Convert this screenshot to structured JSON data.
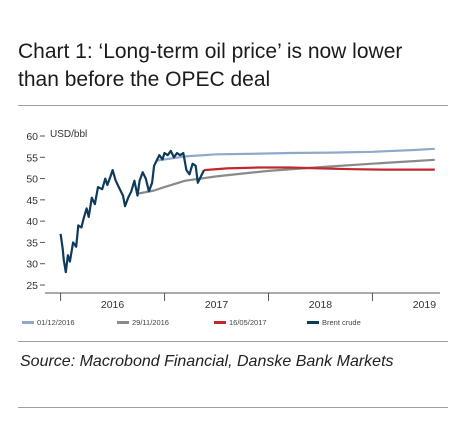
{
  "title": "Chart 1: ‘Long-term oil price’ is now lower than before the OPEC deal",
  "source": "Source: Macrobond Financial, Danske Bank Markets",
  "colors": {
    "series_0112": "#8fa9cc",
    "series_2911": "#8a8a8a",
    "series_1605": "#c0282d",
    "brent": "#0e3a5c"
  },
  "chart_data": {
    "type": "line",
    "ylabel": "USD/bbl",
    "ylim": [
      25,
      60
    ],
    "yticks": [
      "60",
      "55",
      "50",
      "45",
      "40",
      "35",
      "30",
      "25"
    ],
    "ytick_values": [
      60,
      55,
      50,
      45,
      40,
      35,
      30,
      25
    ],
    "xlim": [
      2015.85,
      2019.65
    ],
    "xticks": [
      "2016",
      "2017",
      "2018",
      "2019"
    ],
    "xtick_positions": [
      2016.5,
      2017.5,
      2018.5,
      2019.5
    ],
    "xgridlines": [
      2016,
      2017,
      2018,
      2019
    ],
    "legend_position": "bottom",
    "series": [
      {
        "name": "01/12/2016",
        "x": [
          2016.92,
          2017.2,
          2017.5,
          2017.8,
          2018.2,
          2018.6,
          2019.0,
          2019.4,
          2019.6
        ],
        "y": [
          54.2,
          55.2,
          55.7,
          55.8,
          56.0,
          56.1,
          56.3,
          56.7,
          57.0
        ]
      },
      {
        "name": "29/11/2016",
        "x": [
          2016.75,
          2016.9,
          2017.0,
          2017.2,
          2017.5,
          2017.8,
          2018.0,
          2018.5,
          2019.0,
          2019.4,
          2019.6
        ],
        "y": [
          46.5,
          47.2,
          48.0,
          49.5,
          50.5,
          51.3,
          51.8,
          52.7,
          53.5,
          54.1,
          54.4
        ]
      },
      {
        "name": "16/05/2017",
        "x": [
          2017.38,
          2017.6,
          2017.9,
          2018.2,
          2018.5,
          2018.8,
          2019.1,
          2019.4,
          2019.6
        ],
        "y": [
          52.0,
          52.4,
          52.6,
          52.6,
          52.4,
          52.2,
          52.1,
          52.1,
          52.1
        ]
      },
      {
        "name": "Brent crude",
        "x": [
          2016.0,
          2016.02,
          2016.03,
          2016.05,
          2016.07,
          2016.09,
          2016.12,
          2016.15,
          2016.17,
          2016.2,
          2016.22,
          2016.25,
          2016.27,
          2016.3,
          2016.33,
          2016.36,
          2016.4,
          2016.43,
          2016.45,
          2016.48,
          2016.5,
          2016.53,
          2016.56,
          2016.6,
          2016.62,
          2016.65,
          2016.68,
          2016.71,
          2016.74,
          2016.76,
          2016.79,
          2016.82,
          2016.85,
          2016.88,
          2016.9,
          2016.92,
          2016.95,
          2016.98,
          2017.0,
          2017.03,
          2017.06,
          2017.09,
          2017.12,
          2017.15,
          2017.18,
          2017.21,
          2017.24,
          2017.27,
          2017.3,
          2017.32,
          2017.35,
          2017.38
        ],
        "y": [
          37.0,
          33.5,
          31.0,
          28.0,
          32.0,
          30.5,
          35.0,
          34.0,
          39.0,
          38.5,
          40.5,
          43.0,
          41.0,
          45.5,
          44.0,
          48.0,
          47.5,
          50.0,
          48.5,
          50.5,
          52.0,
          49.5,
          48.0,
          46.0,
          43.5,
          45.5,
          47.0,
          49.5,
          46.0,
          49.5,
          51.5,
          50.0,
          47.0,
          49.0,
          53.0,
          54.0,
          55.5,
          54.5,
          56.0,
          55.5,
          56.5,
          55.0,
          56.0,
          55.5,
          56.0,
          52.0,
          51.0,
          53.5,
          53.0,
          49.0,
          50.5,
          52.0
        ]
      }
    ]
  }
}
